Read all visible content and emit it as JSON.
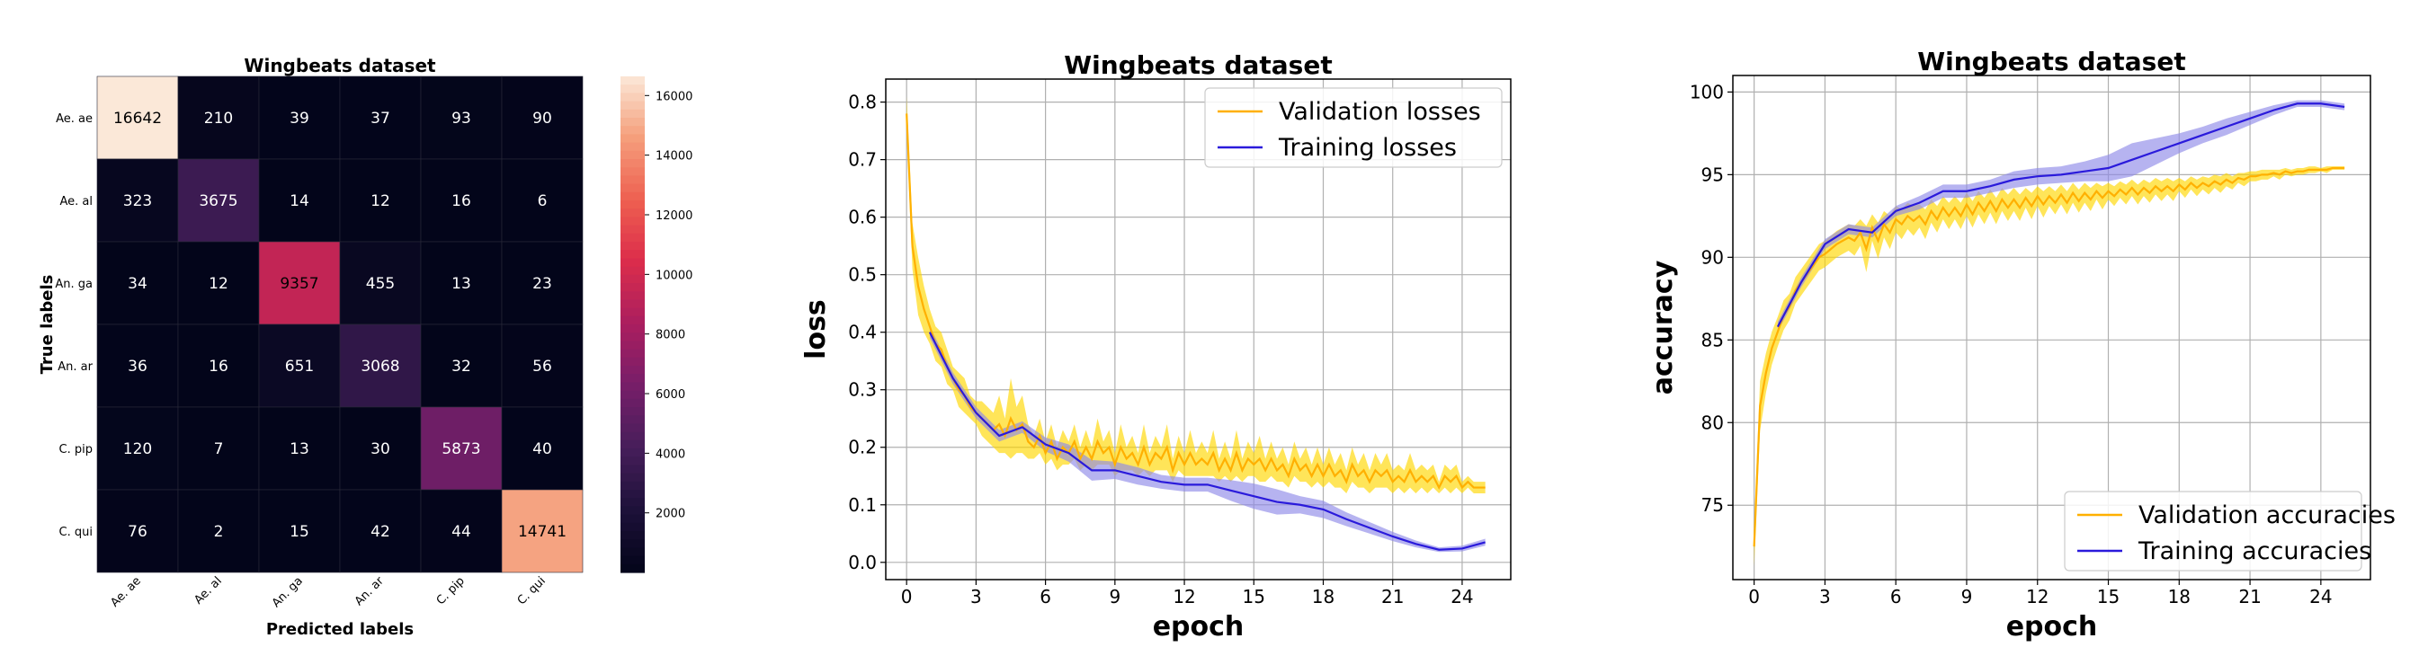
{
  "chart_data": [
    {
      "type": "heatmap",
      "title": "Wingbeats dataset",
      "xlabel": "Predicted labels",
      "ylabel": "True labels",
      "row_labels": [
        "Ae. ae",
        "Ae. al",
        "An. ga",
        "An. ar",
        "C. pip",
        "C. qui"
      ],
      "col_labels": [
        "Ae. ae",
        "Ae. al",
        "An. ga",
        "An. ar",
        "C. pip",
        "C. qui"
      ],
      "matrix": [
        [
          16642,
          210,
          39,
          37,
          93,
          90
        ],
        [
          323,
          3675,
          14,
          12,
          16,
          6
        ],
        [
          34,
          12,
          9357,
          455,
          13,
          23
        ],
        [
          36,
          16,
          651,
          3068,
          32,
          56
        ],
        [
          120,
          7,
          13,
          30,
          5873,
          40
        ],
        [
          76,
          2,
          15,
          42,
          44,
          14741
        ]
      ],
      "colorbar_ticks": [
        2000,
        4000,
        6000,
        8000,
        10000,
        12000,
        14000,
        16000
      ],
      "vmin": 2,
      "vmax": 16642
    },
    {
      "type": "line",
      "title": "Wingbeats dataset",
      "xlabel": "epoch",
      "ylabel": "loss",
      "xlim": [
        -0.9,
        26.1
      ],
      "ylim": [
        -0.03,
        0.84
      ],
      "xticks": [
        0,
        3,
        6,
        9,
        12,
        15,
        18,
        21,
        24
      ],
      "yticks": [
        0.0,
        0.1,
        0.2,
        0.3,
        0.4,
        0.5,
        0.6,
        0.7,
        0.8
      ],
      "legend": "top-right",
      "series": [
        {
          "name": "Validation losses",
          "color": "#ffb000",
          "band_color": "#ffd700",
          "x": [
            0.0,
            0.25,
            0.5,
            0.75,
            1.0,
            1.25,
            1.5,
            1.75,
            2.0,
            2.25,
            2.5,
            2.75,
            3.0,
            3.25,
            3.5,
            3.75,
            4.0,
            4.25,
            4.5,
            4.75,
            5.0,
            5.25,
            5.5,
            5.75,
            6.0,
            6.25,
            6.5,
            6.75,
            7.0,
            7.25,
            7.5,
            7.75,
            8.0,
            8.25,
            8.5,
            8.75,
            9.0,
            9.25,
            9.5,
            9.75,
            10.0,
            10.25,
            10.5,
            10.75,
            11.0,
            11.25,
            11.5,
            11.75,
            12.0,
            12.25,
            12.5,
            12.75,
            13.0,
            13.25,
            13.5,
            13.75,
            14.0,
            14.25,
            14.5,
            14.75,
            15.0,
            15.25,
            15.5,
            15.75,
            16.0,
            16.25,
            16.5,
            16.75,
            17.0,
            17.25,
            17.5,
            17.75,
            18.0,
            18.25,
            18.5,
            18.75,
            19.0,
            19.25,
            19.5,
            19.75,
            20.0,
            20.25,
            20.5,
            20.75,
            21.0,
            21.25,
            21.5,
            21.75,
            22.0,
            22.25,
            22.5,
            22.75,
            23.0,
            23.25,
            23.5,
            23.75,
            24.0,
            24.25,
            24.5,
            24.75,
            25.0
          ],
          "values": [
            0.78,
            0.55,
            0.48,
            0.44,
            0.41,
            0.38,
            0.37,
            0.34,
            0.32,
            0.3,
            0.29,
            0.27,
            0.26,
            0.25,
            0.24,
            0.23,
            0.24,
            0.22,
            0.25,
            0.23,
            0.24,
            0.21,
            0.2,
            0.22,
            0.19,
            0.21,
            0.18,
            0.2,
            0.19,
            0.21,
            0.18,
            0.2,
            0.18,
            0.21,
            0.19,
            0.2,
            0.17,
            0.2,
            0.18,
            0.19,
            0.17,
            0.2,
            0.17,
            0.19,
            0.18,
            0.2,
            0.16,
            0.19,
            0.17,
            0.19,
            0.17,
            0.18,
            0.17,
            0.19,
            0.16,
            0.18,
            0.16,
            0.19,
            0.16,
            0.18,
            0.17,
            0.18,
            0.16,
            0.18,
            0.16,
            0.17,
            0.15,
            0.18,
            0.16,
            0.17,
            0.15,
            0.17,
            0.15,
            0.17,
            0.15,
            0.16,
            0.14,
            0.17,
            0.15,
            0.16,
            0.14,
            0.16,
            0.15,
            0.16,
            0.14,
            0.15,
            0.14,
            0.16,
            0.14,
            0.15,
            0.14,
            0.15,
            0.13,
            0.15,
            0.14,
            0.15,
            0.13,
            0.14,
            0.13,
            0.13,
            0.13
          ],
          "spread": [
            0.03,
            0.04,
            0.05,
            0.04,
            0.03,
            0.03,
            0.03,
            0.03,
            0.02,
            0.03,
            0.03,
            0.02,
            0.02,
            0.03,
            0.03,
            0.03,
            0.05,
            0.03,
            0.07,
            0.04,
            0.05,
            0.03,
            0.02,
            0.03,
            0.02,
            0.03,
            0.02,
            0.03,
            0.02,
            0.03,
            0.02,
            0.03,
            0.02,
            0.04,
            0.02,
            0.03,
            0.02,
            0.04,
            0.02,
            0.03,
            0.02,
            0.04,
            0.02,
            0.03,
            0.02,
            0.04,
            0.02,
            0.03,
            0.02,
            0.04,
            0.02,
            0.03,
            0.02,
            0.04,
            0.02,
            0.03,
            0.02,
            0.04,
            0.02,
            0.03,
            0.02,
            0.04,
            0.02,
            0.03,
            0.02,
            0.03,
            0.02,
            0.03,
            0.02,
            0.03,
            0.02,
            0.03,
            0.02,
            0.03,
            0.02,
            0.03,
            0.02,
            0.03,
            0.02,
            0.03,
            0.02,
            0.03,
            0.02,
            0.03,
            0.02,
            0.02,
            0.02,
            0.03,
            0.02,
            0.02,
            0.02,
            0.02,
            0.01,
            0.02,
            0.02,
            0.02,
            0.01,
            0.01,
            0.01,
            0.01,
            0.01
          ]
        },
        {
          "name": "Training losses",
          "color": "#2a1adb",
          "band_color": "#8f8ae8",
          "x": [
            1,
            2,
            3,
            4,
            5,
            6,
            7,
            8,
            9,
            10,
            11,
            12,
            13,
            14,
            15,
            16,
            17,
            18,
            19,
            20,
            21,
            22,
            23,
            24,
            25
          ],
          "values": [
            0.4,
            0.32,
            0.26,
            0.22,
            0.235,
            0.205,
            0.19,
            0.16,
            0.16,
            0.15,
            0.14,
            0.135,
            0.135,
            0.125,
            0.115,
            0.105,
            0.1,
            0.092,
            0.075,
            0.06,
            0.045,
            0.032,
            0.022,
            0.024,
            0.035
          ],
          "spread": [
            0.01,
            0.01,
            0.01,
            0.01,
            0.01,
            0.012,
            0.015,
            0.018,
            0.015,
            0.015,
            0.012,
            0.012,
            0.012,
            0.018,
            0.022,
            0.022,
            0.015,
            0.015,
            0.012,
            0.01,
            0.008,
            0.006,
            0.004,
            0.005,
            0.006
          ]
        }
      ]
    },
    {
      "type": "line",
      "title": "Wingbeats dataset",
      "xlabel": "epoch",
      "ylabel": "accuracy",
      "xlim": [
        -0.9,
        26.1
      ],
      "ylim": [
        70.5,
        101.0
      ],
      "xticks": [
        0,
        3,
        6,
        9,
        12,
        15,
        18,
        21,
        24
      ],
      "yticks": [
        75,
        80,
        85,
        90,
        95,
        100
      ],
      "legend": "bottom-right",
      "series": [
        {
          "name": "Validation accuracies",
          "color": "#ffb000",
          "band_color": "#ffd700",
          "x": [
            0.0,
            0.25,
            0.5,
            0.75,
            1.0,
            1.25,
            1.5,
            1.75,
            2.0,
            2.25,
            2.5,
            2.75,
            3.0,
            3.25,
            3.5,
            3.75,
            4.0,
            4.25,
            4.5,
            4.75,
            5.0,
            5.25,
            5.5,
            5.75,
            6.0,
            6.25,
            6.5,
            6.75,
            7.0,
            7.25,
            7.5,
            7.75,
            8.0,
            8.25,
            8.5,
            8.75,
            9.0,
            9.25,
            9.5,
            9.75,
            10.0,
            10.25,
            10.5,
            10.75,
            11.0,
            11.25,
            11.5,
            11.75,
            12.0,
            12.25,
            12.5,
            12.75,
            13.0,
            13.25,
            13.5,
            13.75,
            14.0,
            14.25,
            14.5,
            14.75,
            15.0,
            15.25,
            15.5,
            15.75,
            16.0,
            16.25,
            16.5,
            16.75,
            17.0,
            17.25,
            17.5,
            17.75,
            18.0,
            18.25,
            18.5,
            18.75,
            19.0,
            19.25,
            19.5,
            19.75,
            20.0,
            20.25,
            20.5,
            20.75,
            21.0,
            21.25,
            21.5,
            21.75,
            22.0,
            22.25,
            22.5,
            22.75,
            23.0,
            23.25,
            23.5,
            23.75,
            24.0,
            24.25,
            24.5,
            24.75,
            25.0
          ],
          "values": [
            72.5,
            81.0,
            83.0,
            84.5,
            85.5,
            86.5,
            87.0,
            88.0,
            88.5,
            89.0,
            89.5,
            90.0,
            90.2,
            90.5,
            90.8,
            91.0,
            91.2,
            91.0,
            91.5,
            90.5,
            91.8,
            91.0,
            92.0,
            91.5,
            92.3,
            92.0,
            92.5,
            92.2,
            92.5,
            92.0,
            92.8,
            92.3,
            93.0,
            92.5,
            93.0,
            92.5,
            93.2,
            92.6,
            93.3,
            92.8,
            93.4,
            92.8,
            93.5,
            93.0,
            93.5,
            93.0,
            93.6,
            93.1,
            93.7,
            93.2,
            93.7,
            93.3,
            93.8,
            93.3,
            93.9,
            93.4,
            93.9,
            93.5,
            94.0,
            93.6,
            94.0,
            93.7,
            94.1,
            93.8,
            94.2,
            93.8,
            94.2,
            93.9,
            94.3,
            94.0,
            94.3,
            94.0,
            94.4,
            94.1,
            94.5,
            94.2,
            94.5,
            94.3,
            94.6,
            94.4,
            94.7,
            94.5,
            94.8,
            94.7,
            94.9,
            94.9,
            95.0,
            95.0,
            95.1,
            95.0,
            95.2,
            95.1,
            95.2,
            95.2,
            95.3,
            95.3,
            95.3,
            95.3,
            95.4,
            95.4,
            95.4
          ],
          "spread": [
            1.2,
            1.5,
            1.2,
            1.0,
            0.9,
            0.9,
            0.8,
            0.8,
            0.8,
            0.8,
            0.8,
            0.8,
            0.8,
            0.8,
            0.8,
            0.8,
            0.8,
            0.9,
            0.8,
            1.4,
            0.8,
            1.1,
            0.8,
            1.0,
            0.8,
            0.9,
            0.8,
            0.9,
            0.7,
            0.9,
            0.7,
            0.8,
            0.7,
            0.8,
            0.7,
            0.8,
            0.7,
            0.8,
            0.7,
            0.8,
            0.7,
            0.8,
            0.7,
            0.8,
            0.7,
            0.8,
            0.6,
            0.8,
            0.6,
            0.8,
            0.6,
            0.7,
            0.6,
            0.7,
            0.6,
            0.7,
            0.6,
            0.7,
            0.5,
            0.7,
            0.5,
            0.6,
            0.5,
            0.6,
            0.5,
            0.6,
            0.5,
            0.6,
            0.5,
            0.6,
            0.5,
            0.6,
            0.4,
            0.5,
            0.4,
            0.5,
            0.4,
            0.5,
            0.4,
            0.5,
            0.4,
            0.4,
            0.3,
            0.4,
            0.3,
            0.3,
            0.3,
            0.3,
            0.2,
            0.3,
            0.2,
            0.2,
            0.2,
            0.2,
            0.2,
            0.2,
            0.1,
            0.2,
            0.1,
            0.1,
            0.1
          ]
        },
        {
          "name": "Training accuracies",
          "color": "#2a1adb",
          "band_color": "#8f8ae8",
          "x": [
            1,
            2,
            3,
            4,
            5,
            6,
            7,
            8,
            9,
            10,
            11,
            12,
            13,
            14,
            15,
            16,
            17,
            18,
            19,
            20,
            21,
            22,
            23,
            24,
            25
          ],
          "values": [
            85.8,
            88.5,
            90.8,
            91.7,
            91.5,
            92.8,
            93.3,
            94.0,
            94.0,
            94.3,
            94.7,
            94.9,
            95.0,
            95.2,
            95.4,
            95.9,
            96.4,
            96.9,
            97.4,
            97.9,
            98.4,
            98.9,
            99.3,
            99.3,
            99.1
          ],
          "spread": [
            0.3,
            0.3,
            0.3,
            0.3,
            0.3,
            0.3,
            0.4,
            0.4,
            0.4,
            0.4,
            0.5,
            0.5,
            0.5,
            0.6,
            0.8,
            1.0,
            0.8,
            0.6,
            0.5,
            0.5,
            0.4,
            0.3,
            0.2,
            0.2,
            0.2
          ]
        }
      ]
    }
  ]
}
